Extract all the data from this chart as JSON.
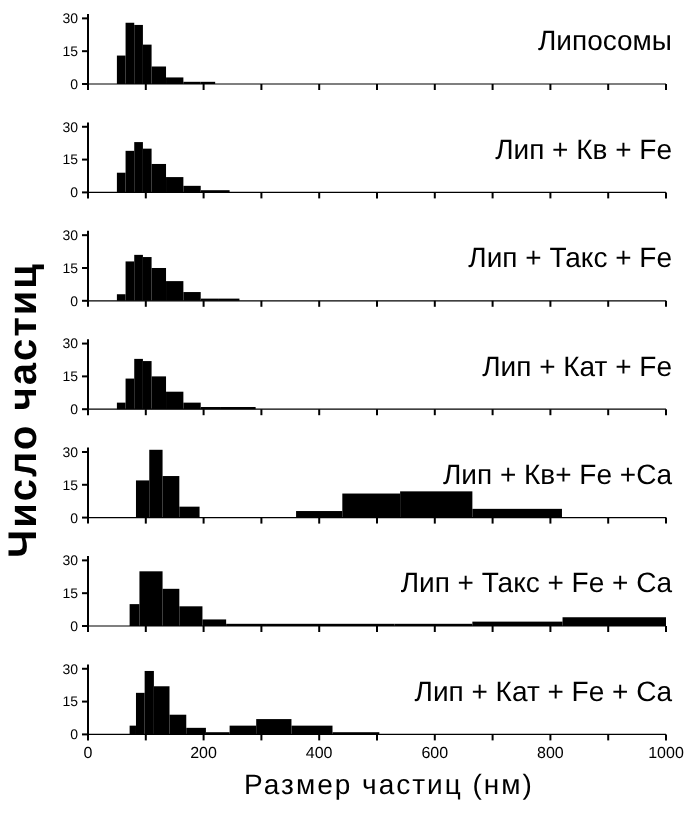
{
  "chart_data": [
    {
      "type": "histogram",
      "title": "Липосомы",
      "bins": [
        50,
        65,
        80,
        95,
        110,
        135,
        165,
        195,
        220
      ],
      "values": [
        13,
        28,
        27,
        18,
        8,
        3,
        1,
        1
      ],
      "color": "#000000",
      "xlim": [
        0,
        1000
      ],
      "ylim": [
        0,
        32
      ],
      "yticks": [
        0,
        15,
        30
      ],
      "xticks": [
        0,
        {
          "value": 100,
          "label": null
        },
        {
          "value": 200,
          "label": null
        },
        {
          "value": 300,
          "label": null
        },
        {
          "value": 400,
          "label": null
        },
        {
          "value": 500,
          "label": null
        },
        {
          "value": 600,
          "label": null
        },
        {
          "value": 700,
          "label": null
        },
        {
          "value": 800,
          "label": null
        },
        {
          "value": 900,
          "label": null
        },
        {
          "value": 1000,
          "label": null
        }
      ],
      "tick_labels": "y"
    },
    {
      "type": "histogram",
      "title": "Лип + Кв + Fe",
      "bins": [
        50,
        65,
        80,
        95,
        110,
        135,
        165,
        195,
        245
      ],
      "values": [
        9,
        19,
        23,
        20,
        13,
        7,
        3,
        1
      ],
      "color": "#000000",
      "xlim": [
        0,
        1000
      ],
      "ylim": [
        0,
        32
      ],
      "yticks": [
        0,
        15,
        30
      ],
      "xticks": [
        0,
        {
          "value": 100,
          "label": null
        },
        {
          "value": 200,
          "label": null
        },
        {
          "value": 300,
          "label": null
        },
        {
          "value": 400,
          "label": null
        },
        {
          "value": 500,
          "label": null
        },
        {
          "value": 600,
          "label": null
        },
        {
          "value": 700,
          "label": null
        },
        {
          "value": 800,
          "label": null
        },
        {
          "value": 900,
          "label": null
        },
        {
          "value": 1000,
          "label": null
        }
      ],
      "tick_labels": "y"
    },
    {
      "type": "histogram",
      "title": "Лип + Такс + Fe",
      "bins": [
        50,
        65,
        80,
        95,
        110,
        135,
        165,
        195,
        225,
        262
      ],
      "values": [
        3,
        18,
        21,
        20,
        15,
        9,
        4,
        1,
        1
      ],
      "color": "#000000",
      "xlim": [
        0,
        1000
      ],
      "ylim": [
        0,
        32
      ],
      "yticks": [
        0,
        15,
        30
      ],
      "xticks": [
        0,
        {
          "value": 100,
          "label": null
        },
        {
          "value": 200,
          "label": null
        },
        {
          "value": 300,
          "label": null
        },
        {
          "value": 400,
          "label": null
        },
        {
          "value": 500,
          "label": null
        },
        {
          "value": 600,
          "label": null
        },
        {
          "value": 700,
          "label": null
        },
        {
          "value": 800,
          "label": null
        },
        {
          "value": 900,
          "label": null
        },
        {
          "value": 1000,
          "label": null
        }
      ],
      "tick_labels": "y"
    },
    {
      "type": "histogram",
      "title": "Лип + Кат + Fe",
      "ylabel": "Число частиц",
      "bins": [
        50,
        65,
        80,
        95,
        110,
        135,
        165,
        195,
        230,
        290
      ],
      "values": [
        3,
        14,
        23,
        22,
        15,
        8,
        3,
        1,
        1
      ],
      "color": "#000000",
      "xlim": [
        0,
        1000
      ],
      "ylim": [
        0,
        32
      ],
      "yticks": [
        0,
        15,
        30
      ],
      "xticks": [
        0,
        {
          "value": 100,
          "label": null
        },
        {
          "value": 200,
          "label": null
        },
        {
          "value": 300,
          "label": null
        },
        {
          "value": 400,
          "label": null
        },
        {
          "value": 500,
          "label": null
        },
        {
          "value": 600,
          "label": null
        },
        {
          "value": 700,
          "label": null
        },
        {
          "value": 800,
          "label": null
        },
        {
          "value": 900,
          "label": null
        },
        {
          "value": 1000,
          "label": null
        }
      ],
      "tick_labels": "y"
    },
    {
      "type": "histogram",
      "title": "Лип + Кв+ Fe +Ca",
      "bins": [
        83,
        106,
        129,
        158,
        193,
        360,
        440,
        540,
        665,
        820
      ],
      "values": [
        17,
        31,
        19,
        5,
        0,
        3,
        11,
        12,
        4
      ],
      "color": "#000000",
      "xlim": [
        0,
        1000
      ],
      "ylim": [
        0,
        32
      ],
      "yticks": [
        0,
        15,
        30
      ],
      "xticks": [
        0,
        {
          "value": 100,
          "label": null
        },
        {
          "value": 200,
          "label": null
        },
        {
          "value": 300,
          "label": null
        },
        {
          "value": 400,
          "label": null
        },
        {
          "value": 500,
          "label": null
        },
        {
          "value": 600,
          "label": null
        },
        {
          "value": 700,
          "label": null
        },
        {
          "value": 800,
          "label": null
        },
        {
          "value": 900,
          "label": null
        },
        {
          "value": 1000,
          "label": null
        }
      ],
      "tick_labels": "y"
    },
    {
      "type": "histogram",
      "title": "Лип + Такс + Fe + Ca",
      "bins": [
        72,
        89,
        129,
        158,
        198,
        239,
        308,
        530,
        665,
        821,
        1000
      ],
      "values": [
        10,
        25,
        17,
        9,
        3,
        1,
        1,
        1,
        2,
        4
      ],
      "color": "#000000",
      "xlim": [
        0,
        1000
      ],
      "ylim": [
        0,
        32
      ],
      "yticks": [
        0,
        15,
        30
      ],
      "xticks": [
        0,
        {
          "value": 100,
          "label": null
        },
        {
          "value": 200,
          "label": null
        },
        {
          "value": 300,
          "label": null
        },
        {
          "value": 400,
          "label": null
        },
        {
          "value": 500,
          "label": null
        },
        {
          "value": 600,
          "label": null
        },
        {
          "value": 700,
          "label": null
        },
        {
          "value": 800,
          "label": null
        },
        {
          "value": 900,
          "label": null
        },
        {
          "value": 1000,
          "label": null
        }
      ],
      "tick_labels": "y"
    },
    {
      "type": "histogram",
      "title": "Лип + Кат + Fe + Ca",
      "xlabel": "Размер частиц (нм)",
      "bins": [
        72,
        83,
        98,
        114,
        141,
        170,
        204,
        245,
        291,
        352,
        423,
        504
      ],
      "values": [
        4,
        19,
        29,
        22,
        9,
        3,
        1,
        4,
        7,
        4,
        1
      ],
      "color": "#000000",
      "xlim": [
        0,
        1000
      ],
      "ylim": [
        0,
        32
      ],
      "yticks": [
        0,
        15,
        30
      ],
      "xticks": [
        0,
        {
          "value": 100,
          "label": null
        },
        200,
        {
          "value": 300,
          "label": null
        },
        400,
        {
          "value": 500,
          "label": null
        },
        600,
        {
          "value": 700,
          "label": null
        },
        800,
        {
          "value": 900,
          "label": null
        },
        1000
      ]
    }
  ]
}
